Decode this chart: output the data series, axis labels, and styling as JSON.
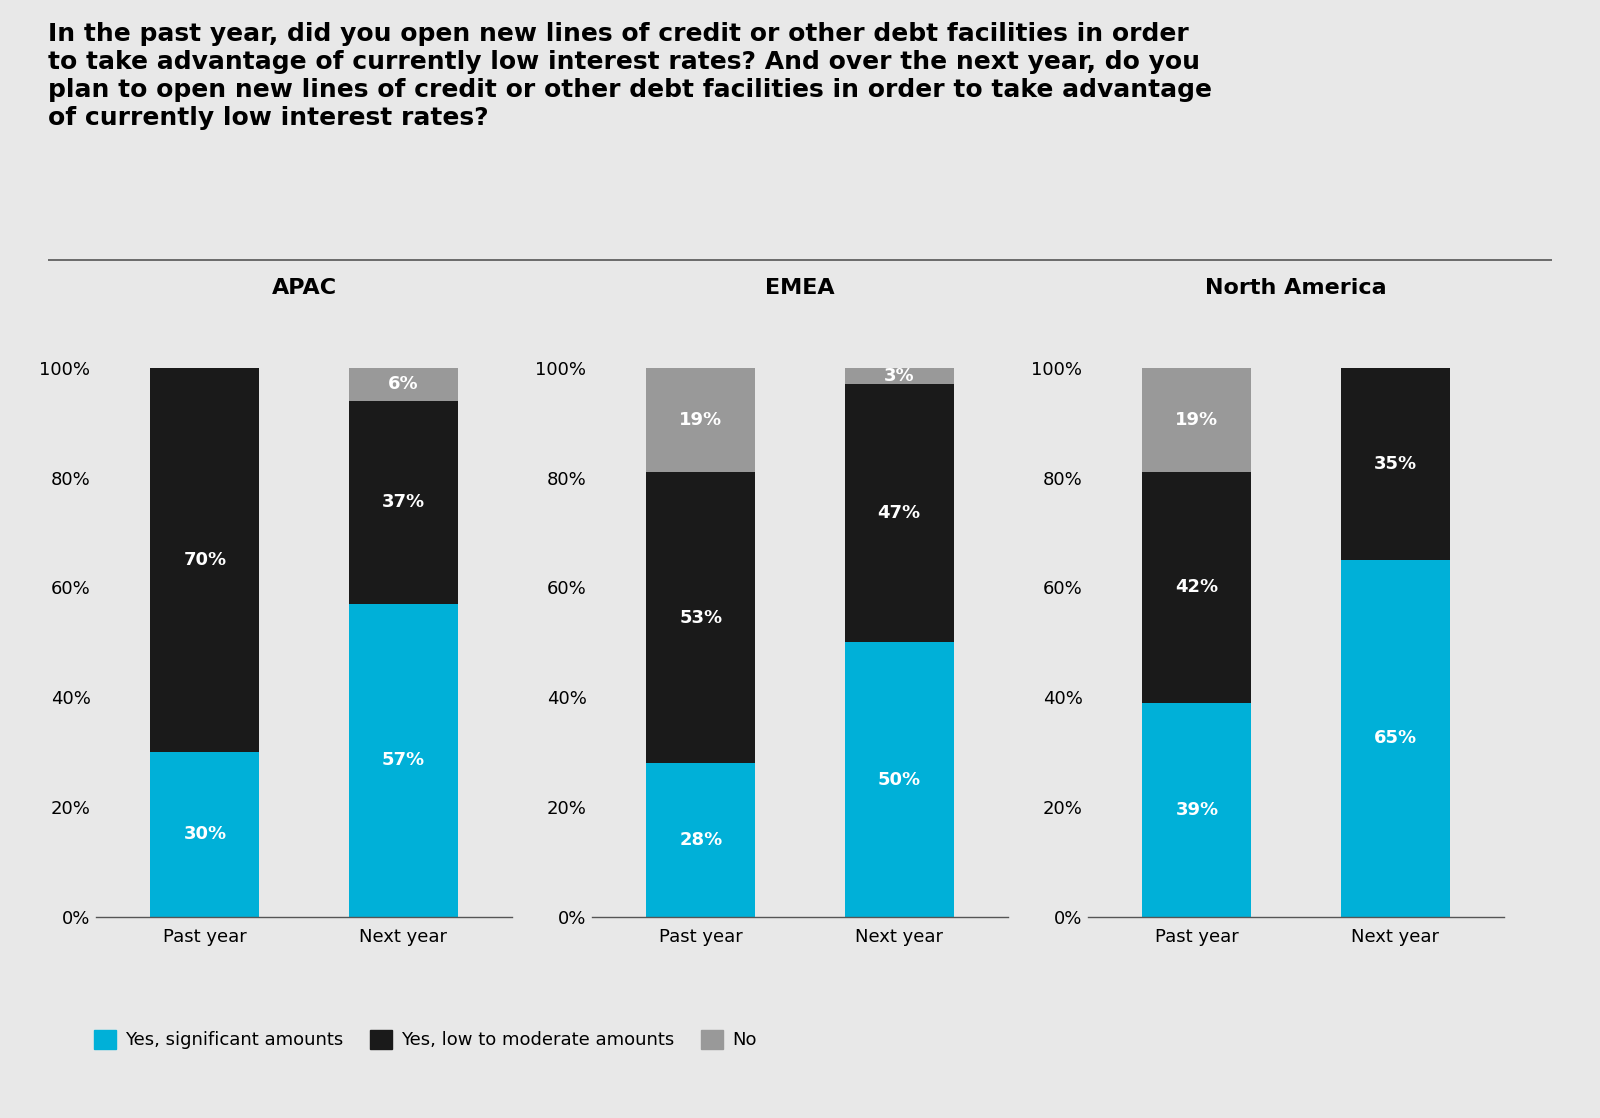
{
  "title": "In the past year, did you open new lines of credit or other debt facilities in order\nto take advantage of currently low interest rates? And over the next year, do you\nplan to open new lines of credit or other debt facilities in order to take advantage\nof currently low interest rates?",
  "background_color": "#e8e8e8",
  "groups": [
    "APAC",
    "EMEA",
    "North America"
  ],
  "bars": [
    "Past year",
    "Next year"
  ],
  "colors": {
    "yes_significant": "#00b0d8",
    "yes_moderate": "#1a1a1a",
    "no": "#999999"
  },
  "data": {
    "APAC": {
      "Past year": {
        "yes_significant": 30,
        "yes_moderate": 70,
        "no": 0
      },
      "Next year": {
        "yes_significant": 57,
        "yes_moderate": 37,
        "no": 6
      }
    },
    "EMEA": {
      "Past year": {
        "yes_significant": 28,
        "yes_moderate": 53,
        "no": 19
      },
      "Next year": {
        "yes_significant": 50,
        "yes_moderate": 47,
        "no": 3
      }
    },
    "North America": {
      "Past year": {
        "yes_significant": 39,
        "yes_moderate": 42,
        "no": 19
      },
      "Next year": {
        "yes_significant": 65,
        "yes_moderate": 35,
        "no": 0
      }
    }
  },
  "legend_labels": [
    "Yes, significant amounts",
    "Yes, low to moderate amounts",
    "No"
  ],
  "ytick_labels": [
    "0%",
    "20%",
    "40%",
    "60%",
    "80%",
    "100%"
  ],
  "bar_width": 0.55,
  "title_fontsize": 18,
  "axis_fontsize": 13,
  "label_fontsize": 13,
  "group_title_fontsize": 16
}
